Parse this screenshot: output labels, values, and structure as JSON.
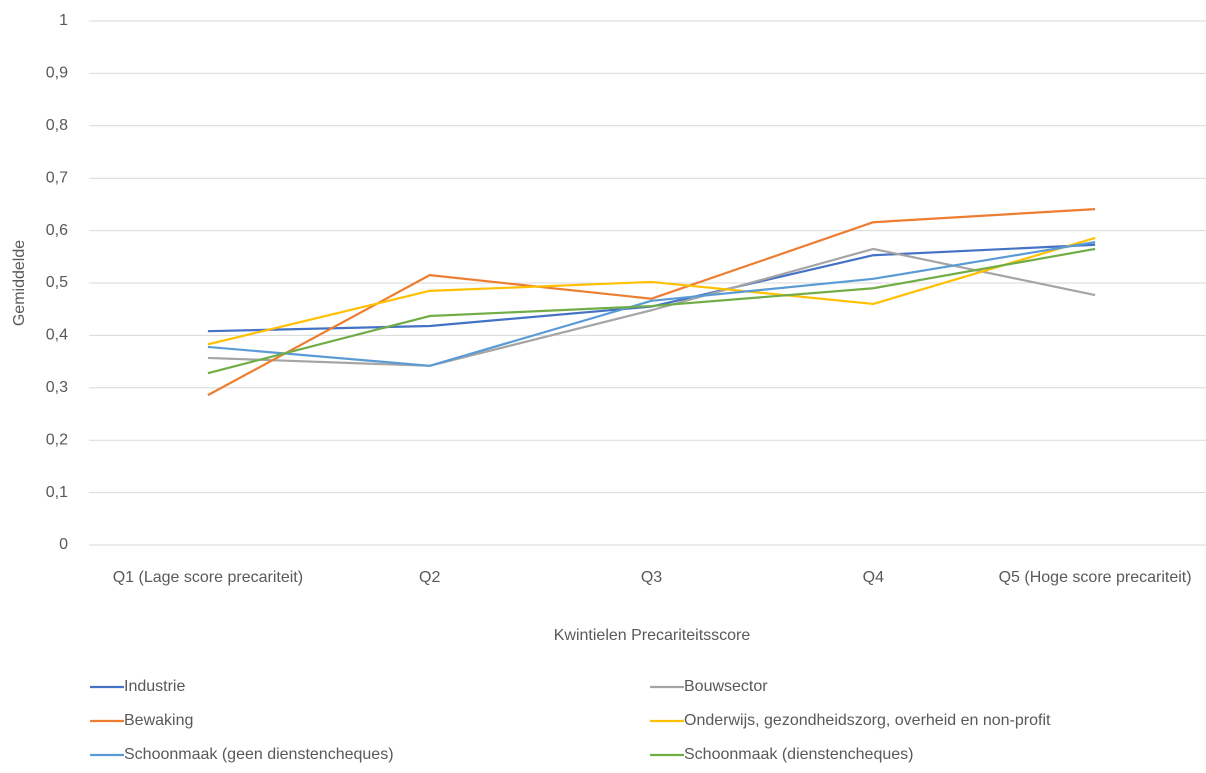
{
  "chart_data": {
    "type": "line",
    "x_label": "Kwintielen Precariteitsscore",
    "y_label": "Gemiddelde",
    "categories": [
      "Q1 (Lage score precariteit)",
      "Q2",
      "Q3",
      "Q4",
      "Q5 (Hoge score precariteit)"
    ],
    "ylim": [
      0,
      1
    ],
    "yticks": [
      0,
      {
        "value": 0.1,
        "label": "0,1"
      },
      {
        "value": 0.2,
        "label": "0,2"
      },
      {
        "value": 0.3,
        "label": "0,3"
      },
      {
        "value": 0.4,
        "label": "0,4"
      },
      {
        "value": 0.5,
        "label": "0,5"
      },
      {
        "value": 0.6,
        "label": "0,6"
      },
      {
        "value": 0.7,
        "label": "0,7"
      },
      {
        "value": 0.8,
        "label": "0,8"
      },
      {
        "value": 0.9,
        "label": "0,9"
      },
      1
    ],
    "grid": true,
    "legend": "bottom",
    "series": [
      {
        "name": "Industrie",
        "color": "#4472c4",
        "values": [
          0.408,
          0.418,
          0.455,
          0.553,
          0.573
        ]
      },
      {
        "name": "Bouwsector",
        "color": "#a5a5a5",
        "values": [
          0.357,
          0.342,
          0.448,
          0.565,
          0.477
        ]
      },
      {
        "name": "Bewaking",
        "color": "#ed7d31",
        "values": [
          0.286,
          0.515,
          0.47,
          0.616,
          0.641
        ]
      },
      {
        "name": "Onderwijs, gezondheidszorg, overheid en non-profit",
        "color": "#ffc000",
        "values": [
          0.383,
          0.485,
          0.502,
          0.46,
          0.586
        ]
      },
      {
        "name": "Schoonmaak (geen dienstencheques)",
        "color": "#5b9bd5",
        "values": [
          0.378,
          0.342,
          0.466,
          0.508,
          0.578
        ]
      },
      {
        "name": "Schoonmaak (dienstencheques)",
        "color": "#70ad47",
        "values": [
          0.328,
          0.437,
          0.456,
          0.49,
          0.565
        ]
      }
    ]
  }
}
